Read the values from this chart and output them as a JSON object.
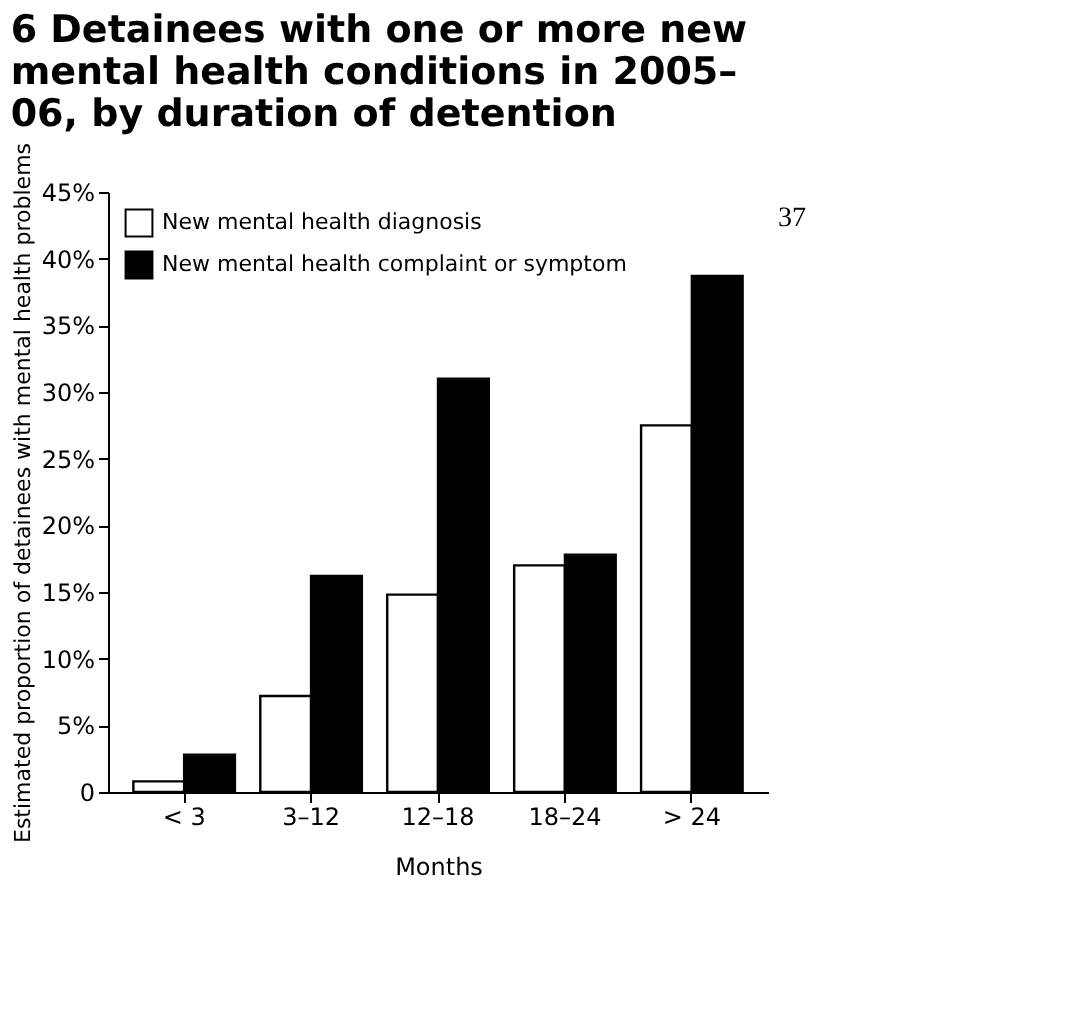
{
  "chart_data": {
    "type": "bar",
    "title": [
      "6  Detainees with one or more new",
      "mental health conditions in 2005–",
      "06, by duration of detention"
    ],
    "xlabel": "Months",
    "ylabel": "Estimated proportion of detainees with mental health problems",
    "categories": [
      "< 3",
      "3–12",
      "12–18",
      "18–24",
      "> 24"
    ],
    "series": [
      {
        "name": "New mental health diagnosis",
        "color": "#ffffff",
        "values": [
          0.8,
          7.2,
          14.8,
          17,
          27.5
        ]
      },
      {
        "name": "New mental health complaint or symptom",
        "color": "#000000",
        "values": [
          2.8,
          16.2,
          31,
          17.8,
          38.7
        ]
      }
    ],
    "ylim": [
      0,
      45
    ],
    "yticks": [
      {
        "value": 0,
        "label": "0"
      },
      {
        "value": 5,
        "label": "5%"
      },
      {
        "value": 10,
        "label": "10%"
      },
      {
        "value": 15,
        "label": "15%"
      },
      {
        "value": 20,
        "label": "20%"
      },
      {
        "value": 25,
        "label": "25%"
      },
      {
        "value": 30,
        "label": "30%"
      },
      {
        "value": 35,
        "label": "35%"
      },
      {
        "value": 40,
        "label": "40%"
      },
      {
        "value": 45,
        "label": "45%"
      }
    ],
    "grid": false,
    "legend": "top left",
    "annotations": [
      "37"
    ]
  }
}
